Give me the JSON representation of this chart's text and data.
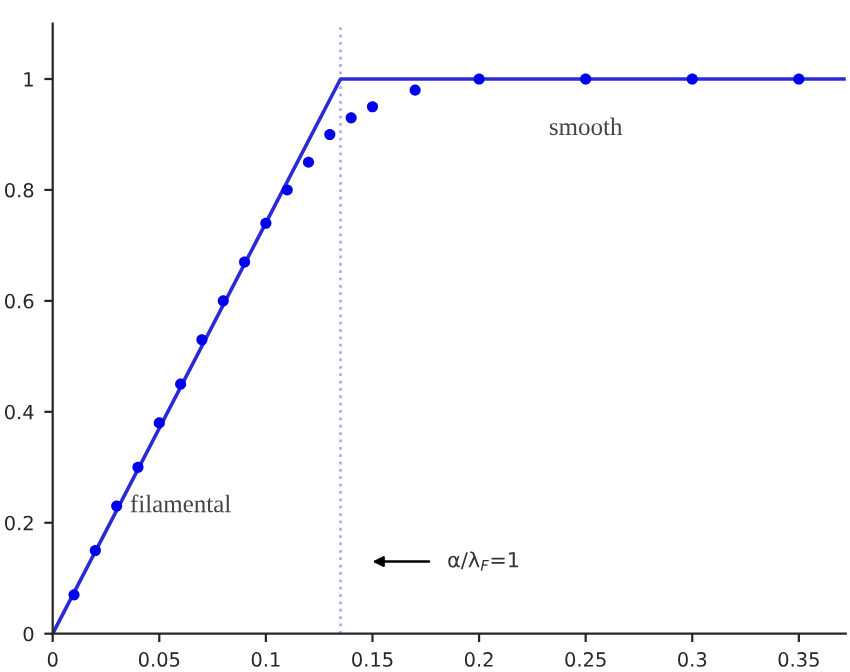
{
  "chart_data": {
    "type": "scatter",
    "series": [
      {
        "type": "line",
        "color": "#2b2bd6",
        "x": [
          0,
          0.135,
          0.372
        ],
        "values": [
          0,
          1,
          1
        ],
        "marker": "none",
        "line_style": "solid"
      },
      {
        "color": "#0000ee",
        "marker": "circle",
        "x": [
          0.01,
          0.02,
          0.03,
          0.04,
          0.05,
          0.06,
          0.07,
          0.08,
          0.09,
          0.1,
          0.11,
          0.12,
          0.13,
          0.14,
          0.15,
          0.17,
          0.2,
          0.25,
          0.3,
          0.35
        ],
        "values": [
          0.07,
          0.15,
          0.23,
          0.3,
          0.38,
          0.45,
          0.53,
          0.6,
          0.67,
          0.74,
          0.8,
          0.85,
          0.9,
          0.93,
          0.95,
          0.98,
          1.0,
          1.0,
          1.0,
          1.0
        ]
      }
    ],
    "xlim": [
      0,
      0.372
    ],
    "ylim": [
      0,
      1.1
    ],
    "xticks": [
      0,
      0.05,
      0.1,
      0.15,
      0.2,
      0.25,
      0.3,
      0.35
    ],
    "yticks": [
      0,
      0.2,
      0.4,
      0.6,
      0.8,
      1
    ],
    "grid": false,
    "ref_lines": [
      {
        "axis": "x",
        "value": 0.135,
        "label": null,
        "color": "#aab0ee",
        "line_style": "dotted"
      }
    ],
    "annotations": [
      "filamental",
      "smooth",
      "α/λ$_{F}$=1"
    ]
  }
}
